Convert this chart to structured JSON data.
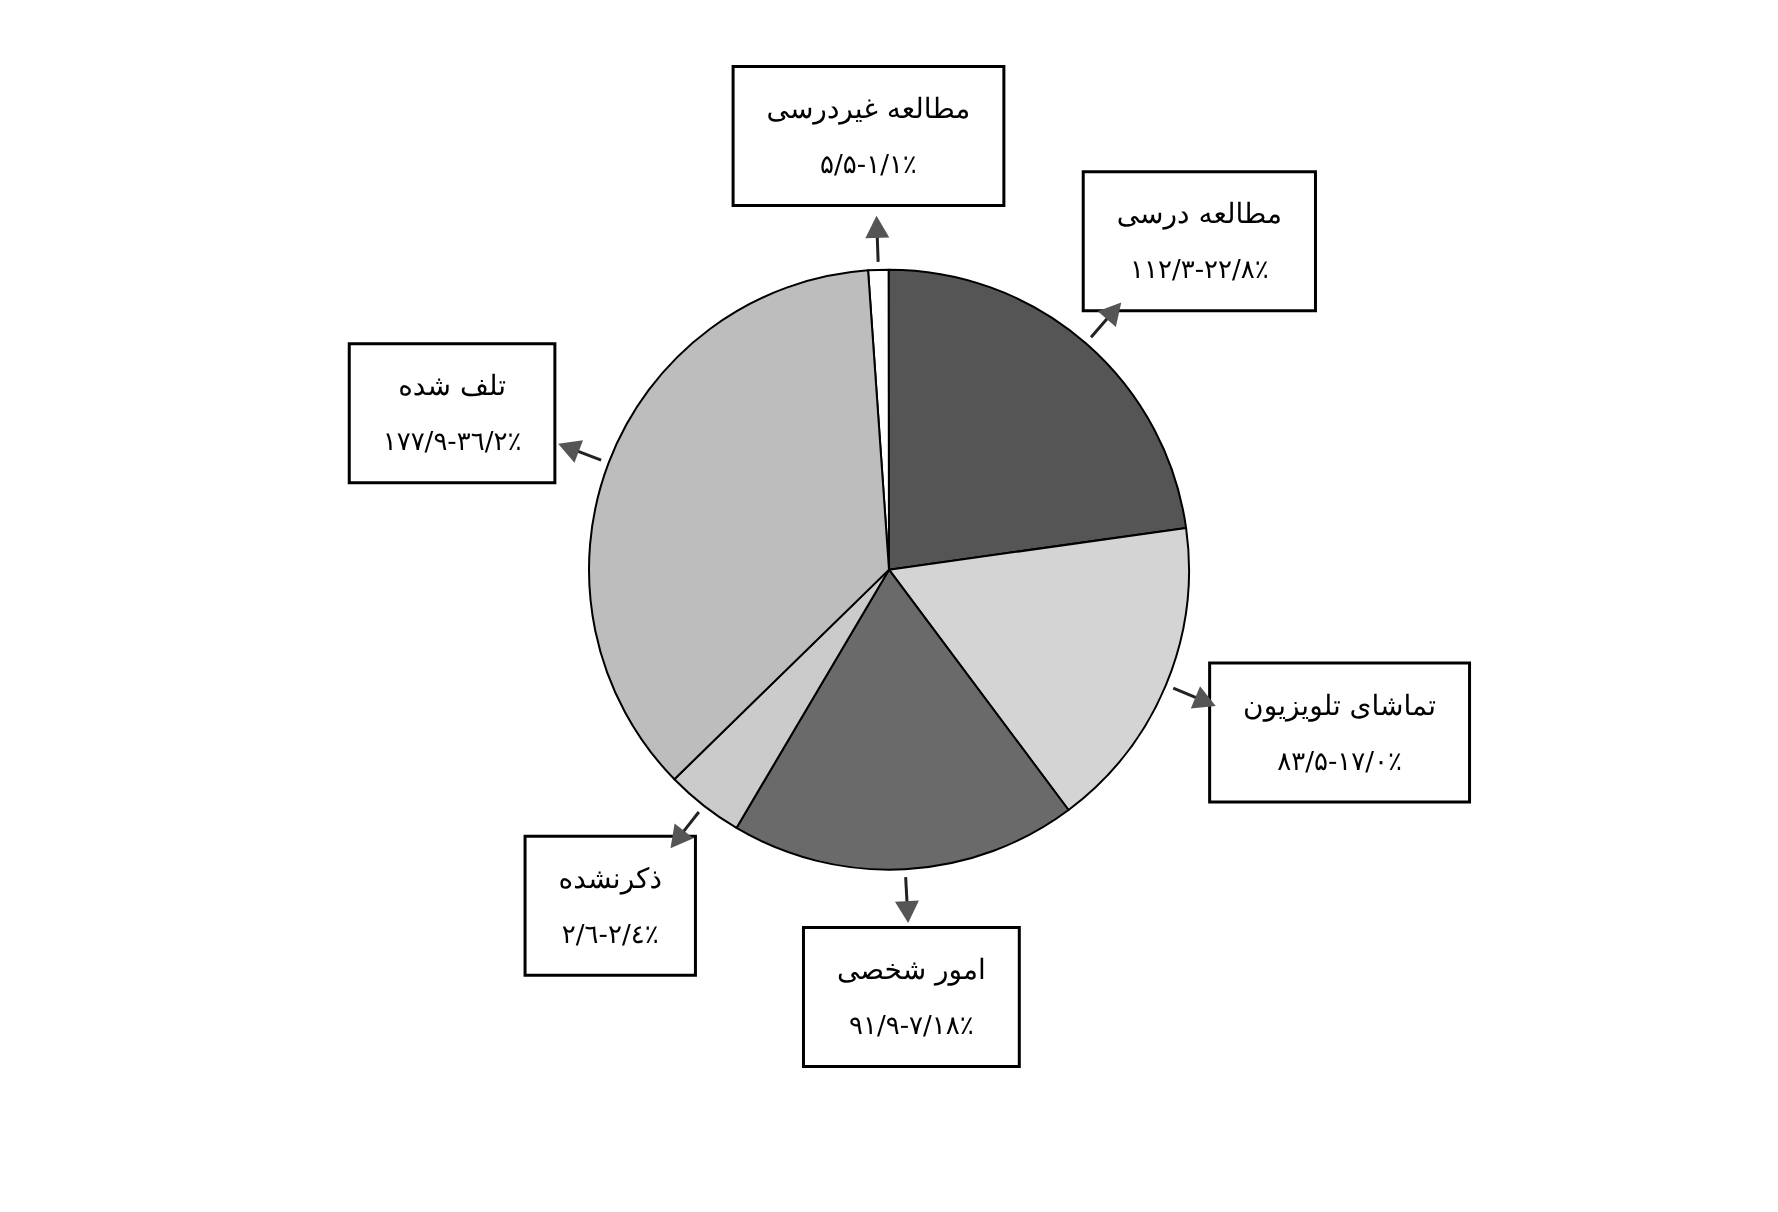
{
  "chart_data": {
    "type": "pie",
    "categories": [
      "مطالعه غیردرسی",
      "مطالعه درسی",
      "تماشای تلویزیون",
      "امور شخصی",
      "ذکرنشده",
      "تلف شده"
    ],
    "values": [
      1.1,
      22.8,
      17.0,
      18.7,
      4.2,
      36.2
    ],
    "colors": [
      "#ffffff",
      "#555555",
      "#d4d4d4",
      "#6a6a6a",
      "#cbcbcb",
      "#bdbdbd"
    ],
    "value_labels": [
      "۵/۵-۱/۱٪",
      "۱۱۲/۳-۲۲/۸٪",
      "۸۳/۵-۱۷/۰٪",
      "۹۱/۹-۷/۱۸٪",
      "۲/٦-۲/٤٪",
      "۱۷۷/۹-۳٦/۲٪"
    ]
  }
}
